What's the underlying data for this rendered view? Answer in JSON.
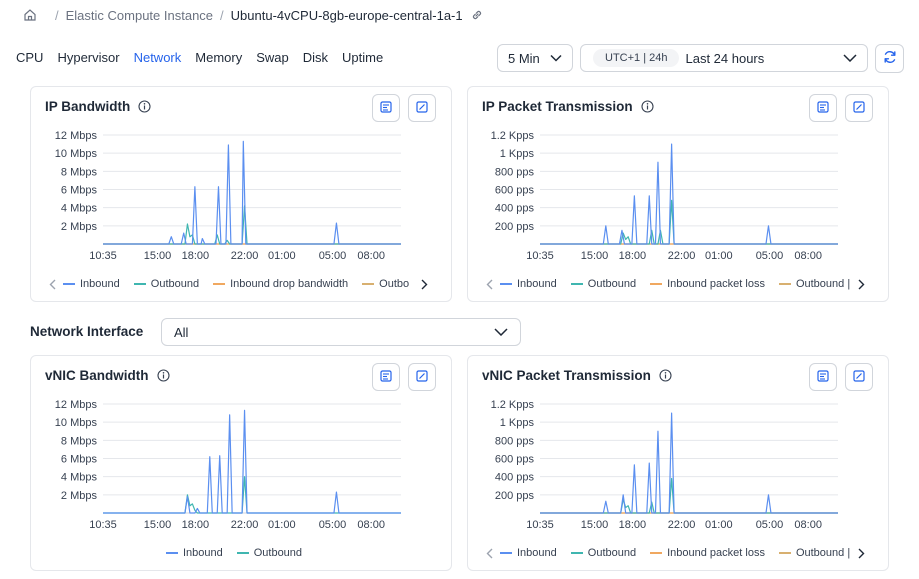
{
  "breadcrumb": {
    "section": "Elastic Compute Instance",
    "instance": "Ubuntu-4vCPU-8gb-europe-central-1a-1"
  },
  "tabs": [
    {
      "label": "CPU",
      "active": false
    },
    {
      "label": "Hypervisor",
      "active": false
    },
    {
      "label": "Network",
      "active": true
    },
    {
      "label": "Memory",
      "active": false
    },
    {
      "label": "Swap",
      "active": false
    },
    {
      "label": "Disk",
      "active": false
    },
    {
      "label": "Uptime",
      "active": false
    }
  ],
  "controls": {
    "interval": "5 Min",
    "timezone": "UTC+1 | 24h",
    "range": "Last 24 hours"
  },
  "network_interface": {
    "label": "Network Interface",
    "value": "All"
  },
  "colors": {
    "inbound": "#5b8ff0",
    "outbound": "#3fb6b0",
    "inbound_drop": "#f0a860",
    "outbound_drop": "#d8b070",
    "accent": "#2563eb"
  },
  "panels": [
    {
      "title": "IP Bandwidth",
      "legend": [
        "Inbound",
        "Outbound",
        "Inbound drop bandwidth",
        "Outbo"
      ],
      "legend_arrows": true
    },
    {
      "title": "IP Packet Transmission",
      "legend": [
        "Inbound",
        "Outbound",
        "Inbound packet loss",
        "Outbound |"
      ],
      "legend_arrows": true
    },
    {
      "title": "vNIC Bandwidth",
      "legend": [
        "Inbound",
        "Outbound"
      ],
      "legend_arrows": false
    },
    {
      "title": "vNIC Packet Transmission",
      "legend": [
        "Inbound",
        "Outbound",
        "Inbound packet loss",
        "Outbound |"
      ],
      "legend_arrows": true
    }
  ],
  "chart_data": [
    {
      "type": "line",
      "title": "IP Bandwidth",
      "x_ticks": [
        "10:35",
        "15:00",
        "18:00",
        "22:00",
        "01:00",
        "05:00",
        "08:00"
      ],
      "y_ticks": [
        "2 Mbps",
        "4 Mbps",
        "6 Mbps",
        "8 Mbps",
        "10 Mbps",
        "12 Mbps"
      ],
      "ylim": [
        0,
        12
      ],
      "xlim": [
        0,
        24
      ],
      "series": [
        {
          "name": "Inbound",
          "x": [
            0,
            5.3,
            5.5,
            5.7,
            6.3,
            6.5,
            6.7,
            7.2,
            7.4,
            7.6,
            7.9,
            8.0,
            8.2,
            8.5,
            9.1,
            9.3,
            9.5,
            9.9,
            10.1,
            10.3,
            11.2,
            11.3,
            11.5,
            18.6,
            18.8,
            19.0,
            24
          ],
          "y": [
            0,
            0,
            0.8,
            0,
            0,
            1.2,
            0,
            0,
            6.3,
            0,
            0,
            0.6,
            0,
            0,
            0,
            6.3,
            0,
            0,
            10.9,
            0,
            0,
            11.3,
            0,
            0,
            2.3,
            0,
            0
          ]
        },
        {
          "name": "Outbound",
          "x": [
            0,
            6.6,
            6.8,
            7.0,
            7.2,
            7.4,
            8.4,
            9.0,
            9.2,
            9.4,
            9.8,
            10.0,
            10.2,
            11.2,
            11.4,
            11.6,
            24
          ],
          "y": [
            0,
            0,
            2.2,
            0.8,
            1.0,
            0,
            0,
            0,
            1.0,
            0,
            0,
            0.4,
            0,
            0,
            4.2,
            0,
            0
          ]
        },
        {
          "name": "Inbound drop bandwidth",
          "x": [
            0,
            24
          ],
          "y": [
            0,
            0
          ]
        },
        {
          "name": "Outbo",
          "x": [
            0,
            24
          ],
          "y": [
            0,
            0
          ]
        }
      ]
    },
    {
      "type": "line",
      "title": "IP Packet Transmission",
      "x_ticks": [
        "10:35",
        "15:00",
        "18:00",
        "22:00",
        "01:00",
        "05:00",
        "08:00"
      ],
      "y_ticks": [
        "200 pps",
        "400 pps",
        "600 pps",
        "800 pps",
        "1 Kpps",
        "1.2 Kpps"
      ],
      "ylim": [
        0,
        1.2
      ],
      "xlim": [
        0,
        24
      ],
      "series": [
        {
          "name": "Inbound",
          "x": [
            0,
            5.1,
            5.3,
            5.5,
            6.4,
            6.6,
            6.8,
            7.4,
            7.6,
            7.8,
            8.6,
            8.8,
            9.0,
            9.3,
            9.5,
            9.7,
            10.4,
            10.6,
            10.8,
            18.2,
            18.4,
            18.6,
            24
          ],
          "y": [
            0,
            0,
            0.2,
            0,
            0,
            0.15,
            0,
            0,
            0.53,
            0,
            0,
            0.53,
            0,
            0,
            0.9,
            0,
            0,
            1.1,
            0,
            0,
            0.2,
            0,
            0
          ]
        },
        {
          "name": "Outbound",
          "x": [
            0,
            6.5,
            6.7,
            6.9,
            7.1,
            7.3,
            8.8,
            9.0,
            9.2,
            9.5,
            9.7,
            9.9,
            10.4,
            10.6,
            10.8,
            24
          ],
          "y": [
            0,
            0,
            0.12,
            0.05,
            0.08,
            0,
            0,
            0.15,
            0,
            0,
            0.15,
            0,
            0,
            0.48,
            0,
            0
          ]
        },
        {
          "name": "Inbound packet loss",
          "x": [
            0,
            24
          ],
          "y": [
            0,
            0
          ]
        },
        {
          "name": "Outbound |",
          "x": [
            0,
            24
          ],
          "y": [
            0,
            0
          ]
        }
      ]
    },
    {
      "type": "line",
      "title": "vNIC Bandwidth",
      "x_ticks": [
        "10:35",
        "15:00",
        "18:00",
        "22:00",
        "01:00",
        "05:00",
        "08:00"
      ],
      "y_ticks": [
        "2 Mbps",
        "4 Mbps",
        "6 Mbps",
        "8 Mbps",
        "10 Mbps",
        "12 Mbps"
      ],
      "ylim": [
        0,
        12
      ],
      "xlim": [
        0,
        24
      ],
      "series": [
        {
          "name": "Inbound",
          "x": [
            0,
            6.6,
            6.8,
            7.0,
            7.4,
            7.6,
            7.8,
            8.4,
            8.6,
            8.8,
            9.2,
            9.4,
            9.6,
            10.0,
            10.2,
            10.4,
            11.2,
            11.4,
            11.6,
            18.6,
            18.8,
            19.0,
            24
          ],
          "y": [
            0,
            0,
            1.8,
            0,
            0,
            0.5,
            0,
            0,
            6.2,
            0,
            0,
            6.3,
            0,
            0,
            10.8,
            0,
            0,
            11.3,
            0,
            0,
            2.3,
            0,
            0
          ]
        },
        {
          "name": "Outbound",
          "x": [
            0,
            6.6,
            6.8,
            7.0,
            7.2,
            7.4,
            7.6,
            11.2,
            11.4,
            11.6,
            24
          ],
          "y": [
            0,
            0,
            2.0,
            0.8,
            1.0,
            0.3,
            0,
            0,
            4.0,
            0,
            0
          ]
        }
      ]
    },
    {
      "type": "line",
      "title": "vNIC Packet Transmission",
      "x_ticks": [
        "10:35",
        "15:00",
        "18:00",
        "22:00",
        "01:00",
        "05:00",
        "08:00"
      ],
      "y_ticks": [
        "200 pps",
        "400 pps",
        "600 pps",
        "800 pps",
        "1 Kpps",
        "1.2 Kpps"
      ],
      "ylim": [
        0,
        1.2
      ],
      "xlim": [
        0,
        24
      ],
      "series": [
        {
          "name": "Inbound",
          "x": [
            0,
            5.1,
            5.3,
            5.5,
            6.5,
            6.7,
            6.9,
            7.4,
            7.6,
            7.8,
            8.6,
            8.8,
            9.0,
            9.3,
            9.5,
            9.7,
            10.4,
            10.6,
            10.8,
            18.2,
            18.4,
            18.6,
            24
          ],
          "y": [
            0,
            0,
            0.13,
            0,
            0,
            0.2,
            0,
            0,
            0.53,
            0,
            0,
            0.55,
            0,
            0,
            0.9,
            0,
            0,
            1.1,
            0,
            0,
            0.2,
            0,
            0
          ]
        },
        {
          "name": "Outbound",
          "x": [
            0,
            6.5,
            6.7,
            6.9,
            7.1,
            7.3,
            8.8,
            9.0,
            9.2,
            10.4,
            10.6,
            10.8,
            24
          ],
          "y": [
            0,
            0,
            0.15,
            0.06,
            0.08,
            0,
            0,
            0.12,
            0,
            0,
            0.38,
            0,
            0
          ]
        },
        {
          "name": "Inbound packet loss",
          "x": [
            0,
            24
          ],
          "y": [
            0,
            0
          ]
        },
        {
          "name": "Outbound |",
          "x": [
            0,
            24
          ],
          "y": [
            0,
            0
          ]
        }
      ]
    }
  ]
}
